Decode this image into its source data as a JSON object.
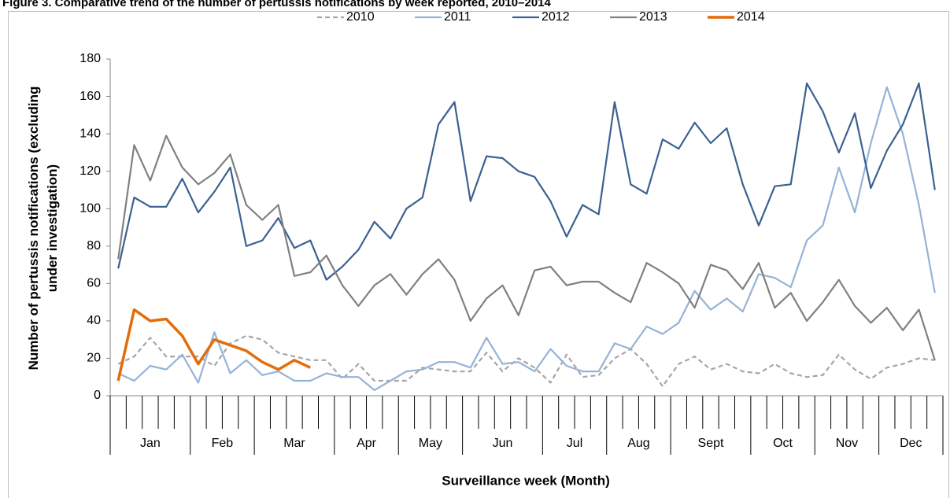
{
  "chart_data": {
    "type": "line",
    "title": "Figure 3. Comparative trend of the number of pertussis notifications by week reported, 2010–2014",
    "x_label": "Surveillance week (Month)",
    "y_label": "Number of pertussis notifications (excluding under investigation)",
    "categories": [
      "Jan",
      "Jan",
      "Jan",
      "Jan",
      "Jan",
      "Feb",
      "Feb",
      "Feb",
      "Feb",
      "Mar",
      "Mar",
      "Mar",
      "Mar",
      "Mar",
      "Apr",
      "Apr",
      "Apr",
      "Apr",
      "May",
      "May",
      "May",
      "May",
      "Jun",
      "Jun",
      "Jun",
      "Jun",
      "Jun",
      "Jul",
      "Jul",
      "Jul",
      "Jul",
      "Aug",
      "Aug",
      "Aug",
      "Aug",
      "Sept",
      "Sept",
      "Sept",
      "Sept",
      "Sept",
      "Oct",
      "Oct",
      "Oct",
      "Oct",
      "Nov",
      "Nov",
      "Nov",
      "Nov",
      "Dec",
      "Dec",
      "Dec",
      "Dec"
    ],
    "series": [
      {
        "name": "2010",
        "color": "#a6a6a6",
        "dashed": true,
        "values": [
          17,
          21,
          31,
          21,
          21,
          21,
          16,
          28,
          32,
          30,
          23,
          21,
          19,
          19,
          9,
          17,
          8,
          8,
          8,
          15,
          14,
          13,
          13,
          23,
          13,
          20,
          15,
          7,
          22,
          10,
          11,
          20,
          25,
          17,
          5,
          17,
          21,
          14,
          17,
          13,
          12,
          17,
          12,
          10,
          11,
          22,
          14,
          9,
          15,
          17,
          20,
          19
        ]
      },
      {
        "name": "2011",
        "color": "#95b3d7",
        "values": [
          12,
          8,
          16,
          14,
          22,
          7,
          34,
          12,
          19,
          11,
          13,
          8,
          8,
          12,
          10,
          10,
          3,
          8,
          13,
          14,
          18,
          18,
          15,
          31,
          17,
          18,
          13,
          25,
          16,
          13,
          13,
          28,
          25,
          37,
          33,
          39,
          56,
          46,
          52,
          45,
          65,
          63,
          58,
          83,
          91,
          122,
          98,
          135,
          165,
          140,
          102,
          55
        ]
      },
      {
        "name": "2012",
        "color": "#3b6190",
        "values": [
          68,
          106,
          101,
          101,
          116,
          98,
          109,
          122,
          80,
          83,
          95,
          79,
          83,
          62,
          69,
          78,
          93,
          84,
          100,
          106,
          145,
          157,
          104,
          128,
          127,
          120,
          117,
          104,
          85,
          102,
          97,
          157,
          113,
          108,
          137,
          132,
          146,
          135,
          143,
          113,
          91,
          112,
          113,
          167,
          152,
          130,
          151,
          111,
          131,
          145,
          167,
          110
        ]
      },
      {
        "name": "2013",
        "color": "#808080",
        "values": [
          73,
          134,
          115,
          139,
          122,
          113,
          119,
          129,
          102,
          94,
          102,
          64,
          66,
          75,
          59,
          48,
          59,
          65,
          54,
          65,
          73,
          62,
          40,
          52,
          59,
          43,
          67,
          69,
          59,
          61,
          61,
          55,
          50,
          71,
          66,
          60,
          47,
          70,
          67,
          57,
          71,
          47,
          55,
          40,
          50,
          62,
          48,
          39,
          47,
          35,
          46,
          19
        ]
      },
      {
        "name": "2014",
        "color": "#e46c0a",
        "thick": true,
        "values": [
          8,
          46,
          40,
          41,
          32,
          17,
          30,
          27,
          24,
          18,
          14,
          19,
          15,
          null,
          null,
          null,
          null,
          null,
          null,
          null,
          null,
          null,
          null,
          null,
          null,
          null,
          null,
          null,
          null,
          null,
          null,
          null,
          null,
          null,
          null,
          null,
          null,
          null,
          null,
          null,
          null,
          null,
          null,
          null,
          null,
          null,
          null,
          null,
          null,
          null,
          null,
          null
        ]
      }
    ],
    "ylim": [
      0,
      180
    ],
    "yticks": [
      0,
      20,
      40,
      60,
      80,
      100,
      120,
      140,
      160,
      180
    ],
    "grid": false
  }
}
